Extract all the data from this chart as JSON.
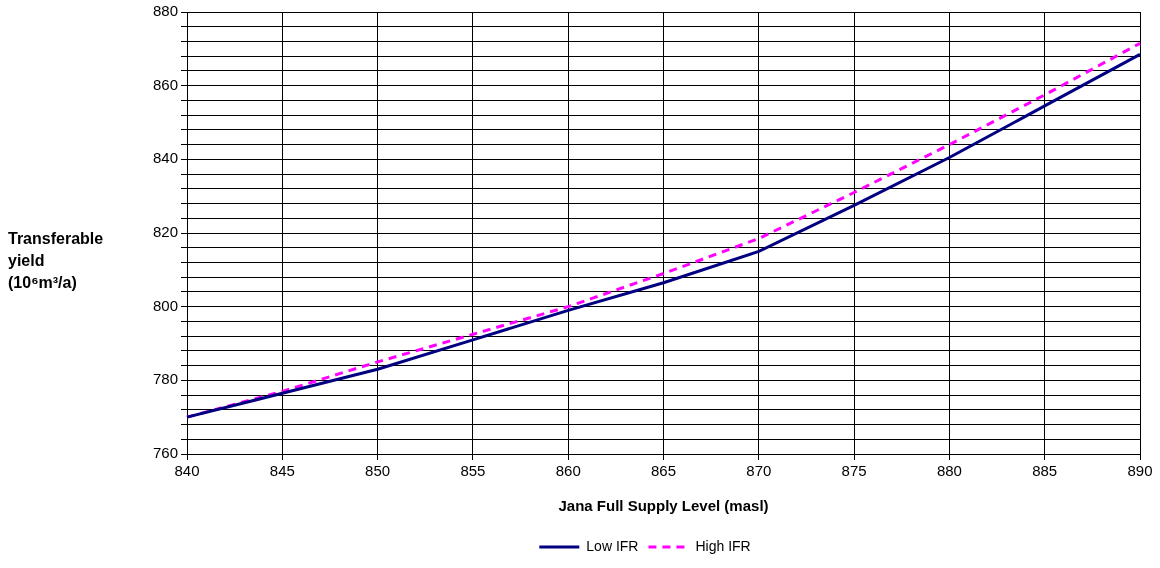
{
  "chart_data": {
    "type": "line",
    "xlabel": "Jana Full Supply Level (masl)",
    "ylabel": "Transferable yield (10⁶m³/a)",
    "x": [
      840,
      845,
      850,
      855,
      860,
      865,
      870,
      875,
      880,
      885,
      890
    ],
    "series": [
      {
        "name": "Low IFR",
        "color": "#000080",
        "line_style": "solid",
        "values": [
          770,
          776.5,
          783,
          791,
          799,
          806.5,
          815,
          827.5,
          840.5,
          854.5,
          868.5
        ]
      },
      {
        "name": "High IFR",
        "color": "#ff00ff",
        "line_style": "dashed",
        "values": [
          770,
          777,
          785,
          792.5,
          800,
          809,
          818.5,
          831,
          844,
          857.5,
          871.5
        ]
      }
    ],
    "xlim": [
      840,
      890
    ],
    "xticks": [
      840,
      845,
      850,
      855,
      860,
      865,
      870,
      875,
      880,
      885,
      890
    ],
    "ylim": [
      760,
      880
    ],
    "yticks": [
      760,
      {
        "value": 764,
        "label": null
      },
      {
        "value": 768,
        "label": null
      },
      {
        "value": 772,
        "label": null
      },
      {
        "value": 776,
        "label": null
      },
      780,
      {
        "value": 784,
        "label": null
      },
      {
        "value": 788,
        "label": null
      },
      {
        "value": 792,
        "label": null
      },
      {
        "value": 796,
        "label": null
      },
      800,
      {
        "value": 804,
        "label": null
      },
      {
        "value": 808,
        "label": null
      },
      {
        "value": 812,
        "label": null
      },
      {
        "value": 816,
        "label": null
      },
      820,
      {
        "value": 824,
        "label": null
      },
      {
        "value": 828,
        "label": null
      },
      {
        "value": 832,
        "label": null
      },
      {
        "value": 836,
        "label": null
      },
      840,
      {
        "value": 844,
        "label": null
      },
      {
        "value": 848,
        "label": null
      },
      {
        "value": 852,
        "label": null
      },
      {
        "value": 856,
        "label": null
      },
      860,
      {
        "value": 864,
        "label": null
      },
      {
        "value": 868,
        "label": null
      },
      {
        "value": 872,
        "label": null
      },
      {
        "value": 876,
        "label": null
      },
      880
    ],
    "grid": true,
    "legend": "bottom",
    "marker": "none"
  }
}
